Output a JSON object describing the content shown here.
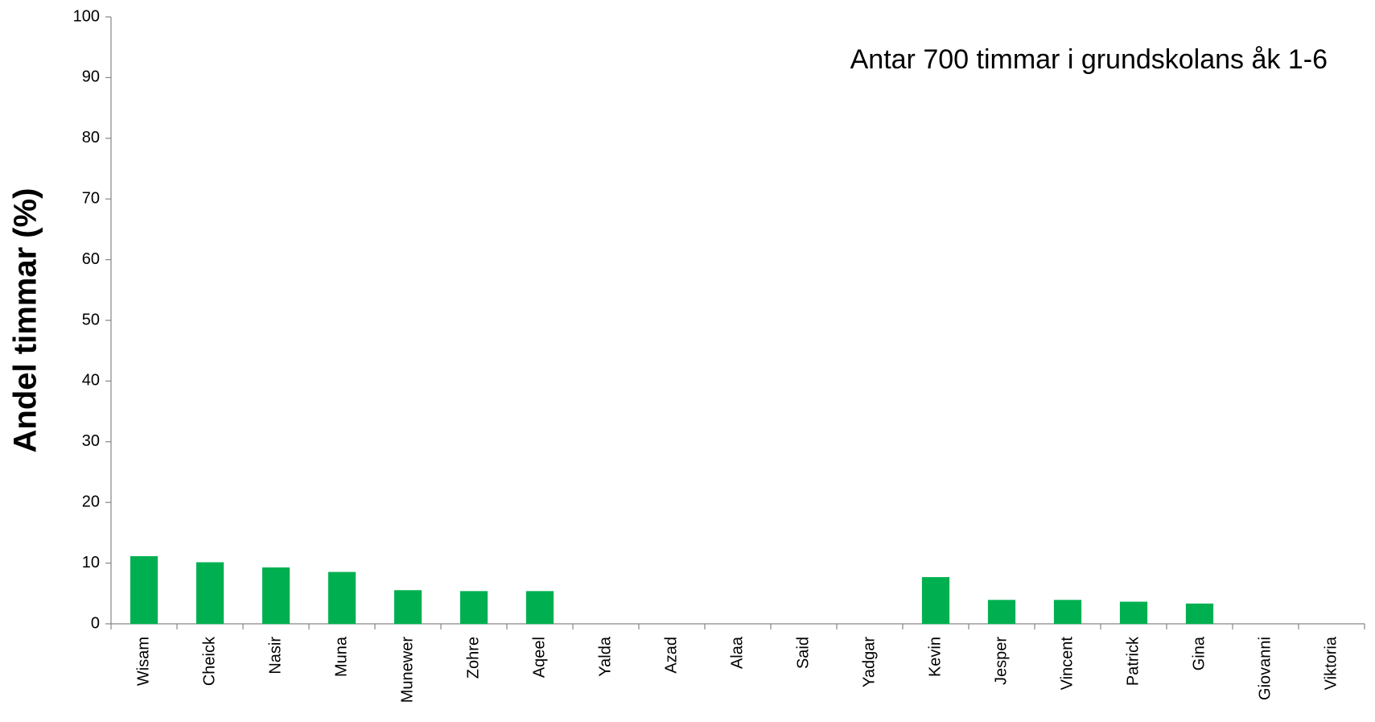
{
  "chart_data": {
    "type": "bar",
    "ylabel": "Andel timmar  (%)",
    "annotation": "Antar 700 timmar i grundskolans åk 1-6",
    "categories": [
      "Wisam",
      "Cheick",
      "Nasir",
      "Muna",
      "Munewer",
      "Zohre",
      "Aqeel",
      "Yalda",
      "Azad",
      "Alaa",
      "Said",
      "Yadgar",
      "Kevin",
      "Jesper",
      "Vincent",
      "Patrick",
      "Gina",
      "Giovanni",
      "Viktoria"
    ],
    "values": [
      11.1,
      10.1,
      9.25,
      8.5,
      5.5,
      5.35,
      5.35,
      0,
      0,
      0,
      0,
      0,
      7.65,
      3.9,
      3.9,
      3.6,
      3.3,
      0,
      0
    ],
    "color": "#00b050",
    "ylim": [
      0,
      100
    ],
    "yticks": [
      0,
      10,
      20,
      30,
      40,
      50,
      60,
      70,
      80,
      90,
      100
    ],
    "grid": false
  }
}
